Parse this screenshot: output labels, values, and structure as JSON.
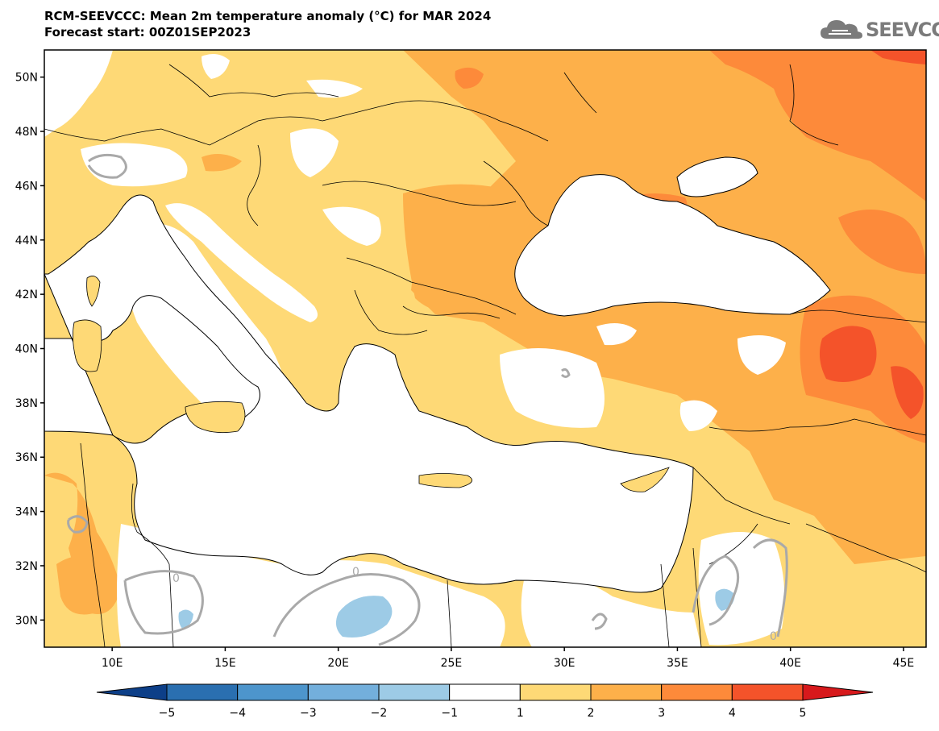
{
  "header": {
    "title_line1": "RCM-SEEVCCC: Mean 2m temperature anomaly (°C) for MAR 2024",
    "title_line2": "Forecast start: 00Z01SEP2023"
  },
  "logo": {
    "text": "SEEVCCC",
    "icon": "cloud-icon"
  },
  "map": {
    "lat_ticks": [
      "50N",
      "48N",
      "46N",
      "44N",
      "42N",
      "40N",
      "38N",
      "36N",
      "34N",
      "32N",
      "30N"
    ],
    "lat_values": [
      50,
      48,
      46,
      44,
      42,
      40,
      38,
      36,
      34,
      32,
      30
    ],
    "lon_ticks": [
      "10E",
      "15E",
      "20E",
      "25E",
      "30E",
      "35E",
      "40E",
      "45E"
    ],
    "lon_values": [
      10,
      15,
      20,
      25,
      30,
      35,
      40,
      45
    ],
    "lon_range": [
      7,
      46
    ],
    "lat_range": [
      29,
      51
    ],
    "contour_label": "0"
  },
  "colorbar": {
    "labels": [
      "−5",
      "−4",
      "−3",
      "−2",
      "−1",
      "1",
      "2",
      "3",
      "4",
      "5"
    ],
    "colors": [
      "#0d3f88",
      "#2a6fb0",
      "#4d95cc",
      "#73afdc",
      "#9dcbe6",
      "#ffffff",
      "#fed976",
      "#fdb04a",
      "#fd8a3a",
      "#f4532a",
      "#d7191c"
    ]
  }
}
